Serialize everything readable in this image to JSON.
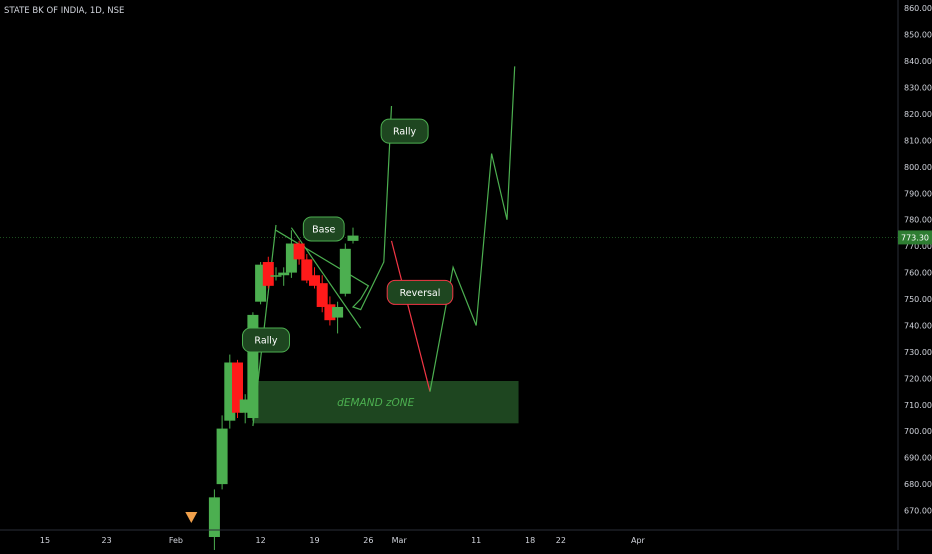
{
  "symbol_header": "STATE BK OF INDIA, 1D, NSE",
  "colors": {
    "background": "#000000",
    "up_candle": "#4caf50",
    "down_candle": "#ff1a1a",
    "projection_up": "#4caf50",
    "projection_down": "#f23645",
    "demand_zone_fill": "#1e4620",
    "label_fill": "#1e4620",
    "label_text": "#ffffff",
    "zone_text": "#4caf50",
    "price_badge": "#2e7d32",
    "axis_text": "#d1d4dc"
  },
  "chart_data": {
    "type": "candlestick",
    "y_axis": {
      "min": 660,
      "max": 860,
      "ticks": [
        860,
        850,
        840,
        830,
        820,
        810,
        800,
        790,
        780,
        770,
        760,
        750,
        740,
        730,
        720,
        710,
        700,
        690,
        680,
        670
      ],
      "tick_labels": [
        "860.00",
        "850.00",
        "840.00",
        "830.00",
        "820.00",
        "810.00",
        "800.00",
        "790.00",
        "780.00",
        "770.00",
        "760.00",
        "750.00",
        "740.00",
        "730.00",
        "720.00",
        "710.00",
        "700.00",
        "690.00",
        "680.00",
        "670.00"
      ]
    },
    "x_axis": {
      "tick_labels": [
        "15",
        "23",
        "Feb",
        "12",
        "19",
        "26",
        "Mar",
        "11",
        "18",
        "22",
        "Apr"
      ],
      "tick_days": [
        14,
        22,
        31,
        42,
        49,
        56,
        60,
        70,
        77,
        81,
        91
      ]
    },
    "last_price": 773.3,
    "last_price_label": "773.30",
    "candles": [
      {
        "day": 36,
        "open": 660,
        "high": 678,
        "low": 655,
        "close": 675
      },
      {
        "day": 37,
        "open": 680,
        "high": 706,
        "low": 678,
        "close": 701
      },
      {
        "day": 38,
        "open": 704,
        "high": 729,
        "low": 701,
        "close": 726
      },
      {
        "day": 39,
        "open": 726,
        "high": 727,
        "low": 705,
        "close": 707
      },
      {
        "day": 40,
        "open": 707,
        "high": 714,
        "low": 703,
        "close": 712
      },
      {
        "day": 41,
        "open": 705,
        "high": 745,
        "low": 704,
        "close": 744
      },
      {
        "day": 42,
        "open": 749,
        "high": 764,
        "low": 748,
        "close": 763
      },
      {
        "day": 43,
        "open": 764,
        "high": 766,
        "low": 754,
        "close": 755
      },
      {
        "day": 44,
        "open": 759,
        "high": 762,
        "low": 757,
        "close": 759
      },
      {
        "day": 45,
        "open": 759,
        "high": 762,
        "low": 755,
        "close": 760
      },
      {
        "day": 46,
        "open": 760,
        "high": 776,
        "low": 758,
        "close": 771
      },
      {
        "day": 47,
        "open": 771,
        "high": 772,
        "low": 763,
        "close": 765
      },
      {
        "day": 48,
        "open": 765,
        "high": 767,
        "low": 756,
        "close": 757
      },
      {
        "day": 49,
        "open": 759,
        "high": 762,
        "low": 754,
        "close": 755
      },
      {
        "day": 50,
        "open": 756,
        "high": 759,
        "low": 745,
        "close": 747
      },
      {
        "day": 51,
        "open": 748,
        "high": 751,
        "low": 740,
        "close": 742
      },
      {
        "day": 52,
        "open": 743,
        "high": 749,
        "low": 737,
        "close": 747
      },
      {
        "day": 53,
        "open": 752,
        "high": 771,
        "low": 751,
        "close": 769
      },
      {
        "day": 54,
        "open": 772,
        "high": 777,
        "low": 771,
        "close": 774
      }
    ],
    "projection_lines": [
      {
        "color": "up",
        "points": [
          [
            41,
            702
          ],
          [
            44,
            778
          ]
        ]
      },
      {
        "color": "up",
        "points": [
          [
            44,
            776
          ],
          [
            56,
            755
          ],
          [
            55,
            750
          ],
          [
            54,
            747
          ],
          [
            55,
            746
          ],
          [
            58,
            764
          ],
          [
            59,
            823
          ]
        ]
      },
      {
        "color": "up",
        "points": [
          [
            46,
            777
          ],
          [
            55,
            739
          ]
        ]
      },
      {
        "color": "down",
        "points": [
          [
            59,
            772
          ],
          [
            64,
            715
          ]
        ]
      },
      {
        "color": "up",
        "points": [
          [
            64,
            715
          ],
          [
            67,
            762
          ],
          [
            70,
            740
          ],
          [
            72,
            805
          ],
          [
            74,
            780
          ],
          [
            75,
            838
          ]
        ]
      }
    ],
    "zones": [
      {
        "label": "dEMAND zONE",
        "day_start": 41,
        "day_end": 75.5,
        "price_low": 703,
        "price_high": 719
      }
    ],
    "annotations": [
      {
        "text": "Rally",
        "day": 42.7,
        "price": 734.5
      },
      {
        "text": "Base",
        "day": 50.2,
        "price": 776.5
      },
      {
        "text": "Rally",
        "day": 60.7,
        "price": 813.5
      },
      {
        "text": "Reversal",
        "day": 62.7,
        "price": 752.5
      }
    ],
    "marker": {
      "type": "triangle-down",
      "day": 33,
      "price": 668
    }
  }
}
